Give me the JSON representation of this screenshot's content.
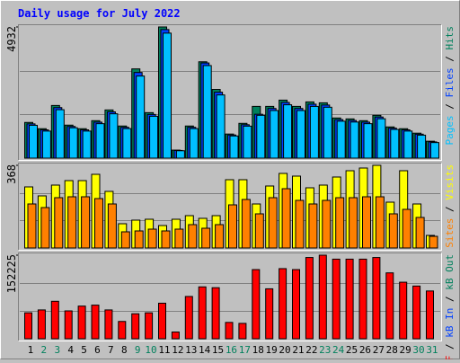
{
  "chart_data": {
    "type": "bar",
    "title": "Daily usage for July 2022",
    "title_color": "#0000ff",
    "categories": [
      "1",
      "2",
      "3",
      "4",
      "5",
      "6",
      "7",
      "8",
      "9",
      "10",
      "11",
      "12",
      "13",
      "14",
      "15",
      "16",
      "17",
      "18",
      "19",
      "20",
      "21",
      "22",
      "23",
      "24",
      "25",
      "26",
      "27",
      "28",
      "29",
      "30",
      "31"
    ],
    "category_colors": [
      "#000000",
      "#00805c",
      "#00805c",
      "#000000",
      "#000000",
      "#000000",
      "#000000",
      "#000000",
      "#00805c",
      "#00805c",
      "#000000",
      "#000000",
      "#000000",
      "#000000",
      "#000000",
      "#00805c",
      "#00805c",
      "#000000",
      "#000000",
      "#000000",
      "#000000",
      "#000000",
      "#00805c",
      "#00805c",
      "#000000",
      "#000000",
      "#000000",
      "#000000",
      "#000000",
      "#00805c",
      "#00805c"
    ],
    "legend_separator": " / ",
    "panels": [
      {
        "ylim": [
          0,
          4932
        ],
        "yticks": [
          4932
        ],
        "series": [
          {
            "name": "Hits",
            "color": "#00805c",
            "values": [
              1342,
              1107,
              1980,
              1241,
              1107,
              1409,
              1812,
              1208,
              3355,
              1711,
              4932,
              302,
              1208,
              3623,
              2583,
              906,
              1308,
              1946,
              1946,
              2181,
              1946,
              2114,
              2080,
              1510,
              1476,
              1409,
              1610,
              1174,
              1107,
              939,
              637
            ]
          },
          {
            "name": "Files",
            "color": "#0040ff",
            "values": [
              1288,
              1063,
              1901,
              1191,
              1063,
              1353,
              1740,
              1160,
              3221,
              1643,
              4835,
              290,
              1160,
              3578,
              2480,
              870,
              1256,
              1650,
              1868,
              2094,
              1868,
              2029,
              1997,
              1450,
              1417,
              1353,
              1546,
              1127,
              1063,
              901,
              612
            ]
          },
          {
            "name": "Pages",
            "color": "#00c0ff",
            "values": [
              1235,
              1018,
              1822,
              1142,
              1018,
              1296,
              1667,
              1111,
              3087,
              1574,
              4700,
              278,
              1111,
              3480,
              2376,
              834,
              1203,
              1610,
              1790,
              2006,
              1790,
              1945,
              1914,
              1389,
              1358,
              1296,
              1481,
              1080,
              1018,
              864,
              586
            ]
          }
        ]
      },
      {
        "ylim": [
          0,
          368
        ],
        "yticks": [
          368
        ],
        "series": [
          {
            "name": "Visits",
            "color": "#ffff00",
            "values": [
              272,
              232,
              280,
              300,
              300,
              328,
              252,
              108,
              124,
              128,
              100,
              128,
              144,
              132,
              144,
              304,
              304,
              196,
              276,
              332,
              320,
              268,
              280,
              316,
              344,
              356,
              368,
              204,
              344,
              196,
              56
            ]
          },
          {
            "name": "Sites",
            "color": "#ff8000",
            "values": [
              196,
              180,
              224,
              228,
              228,
              220,
              196,
              72,
              76,
              84,
              76,
              84,
              104,
              88,
              104,
              192,
              216,
              152,
              224,
              264,
              212,
              196,
              212,
              224,
              224,
              228,
              228,
              152,
              172,
              136,
              52
            ]
          }
        ]
      },
      {
        "ylim": [
          0,
          152225
        ],
        "yticks": [
          152225
        ],
        "series": [
          {
            "name": "kB Out",
            "color": "#00805c",
            "values": [
              0,
              0,
              0,
              0,
              0,
              0,
              0,
              0,
              0,
              0,
              0,
              0,
              0,
              0,
              0,
              0,
              0,
              0,
              0,
              0,
              0,
              0,
              0,
              0,
              0,
              0,
              0,
              0,
              0,
              0,
              0
            ]
          },
          {
            "name": "kB In",
            "color": "#0040ff",
            "values": [
              0,
              0,
              0,
              0,
              0,
              0,
              0,
              0,
              0,
              0,
              0,
              0,
              0,
              0,
              0,
              0,
              0,
              0,
              0,
              0,
              0,
              0,
              0,
              0,
              0,
              0,
              0,
              0,
              0,
              0,
              0
            ]
          },
          {
            "name": "kB F",
            "color": "#ff0000",
            "values": [
              47244,
              52492,
              68240,
              50743,
              59492,
              61240,
              52492,
              31495,
              45493,
              47244,
              64741,
              12248,
              76988,
              94486,
              93000,
              29745,
              27995,
              125981,
              90986,
              127731,
              125981,
              148000,
              152225,
              145000,
              145000,
              145000,
              148000,
              120000,
              103000,
              96000,
              87000
            ]
          }
        ]
      }
    ]
  }
}
